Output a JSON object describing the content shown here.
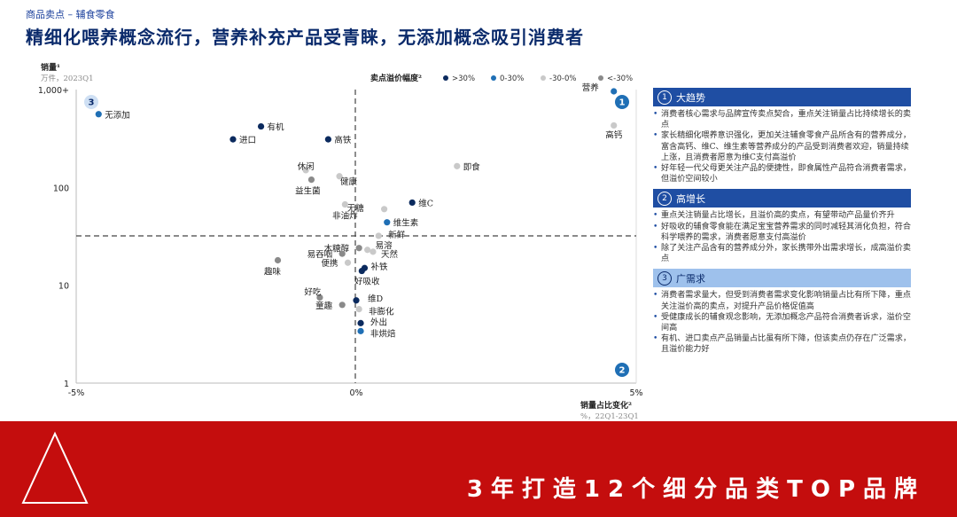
{
  "header": {
    "kicker": "商品卖点 – 辅食零食",
    "title": "精细化喂养概念流行，营养补充产品受青睐，无添加概念吸引消费者"
  },
  "chart_data": {
    "type": "scatter",
    "y_label": "销量¹",
    "y_unit": "万件，2023Q1",
    "x_label": "销量占比变化²",
    "x_unit": "%，22Q1-23Q1",
    "y_scale": "log",
    "y_ticks": [
      "1,000+",
      "100",
      "10",
      "1"
    ],
    "x_ticks": [
      "-5%",
      "0%",
      "5%"
    ],
    "xlim": [
      -5,
      5
    ],
    "ylim": [
      1,
      1000
    ],
    "legend_title": "卖点溢价幅度²",
    "legend": [
      {
        "key": "a",
        "label": ">30%",
        "color": "#0b2a5e"
      },
      {
        "key": "b",
        "label": "0-30%",
        "color": "#1f6fb5"
      },
      {
        "key": "c",
        "label": "-30-0%",
        "color": "#c9c9c9"
      },
      {
        "key": "d",
        "label": "<-30%",
        "color": "#8a8a8a"
      }
    ],
    "points": [
      {
        "label": "营养",
        "x": 4.6,
        "y": 1000,
        "cat": "b"
      },
      {
        "label": "无添加",
        "x": -4.6,
        "y": 560,
        "cat": "b"
      },
      {
        "label": "有机",
        "x": -1.7,
        "y": 420,
        "cat": "a"
      },
      {
        "label": "高钙",
        "x": 4.6,
        "y": 430,
        "cat": "c"
      },
      {
        "label": "进口",
        "x": -2.2,
        "y": 310,
        "cat": "a"
      },
      {
        "label": "高铁",
        "x": -0.5,
        "y": 310,
        "cat": "a"
      },
      {
        "label": "即食",
        "x": 1.8,
        "y": 165,
        "cat": "c"
      },
      {
        "label": "休闲",
        "x": -0.9,
        "y": 150,
        "cat": "c"
      },
      {
        "label": "健康",
        "x": -0.3,
        "y": 130,
        "cat": "c"
      },
      {
        "label": "益生菌",
        "x": -0.8,
        "y": 120,
        "cat": "d"
      },
      {
        "label": "维C",
        "x": 1.0,
        "y": 70,
        "cat": "a"
      },
      {
        "label": "无糖",
        "x": 0.5,
        "y": 60,
        "cat": "c"
      },
      {
        "label": "非油炸",
        "x": -0.2,
        "y": 67,
        "cat": "c"
      },
      {
        "label": "维生素",
        "x": 0.55,
        "y": 44,
        "cat": "b"
      },
      {
        "label": "新鲜",
        "x": 0.4,
        "y": 32,
        "cat": "c"
      },
      {
        "label": "木糖醇",
        "x": 0.05,
        "y": 24,
        "cat": "d"
      },
      {
        "label": "易溶",
        "x": 0.2,
        "y": 23,
        "cat": "c"
      },
      {
        "label": "天然",
        "x": 0.3,
        "y": 22,
        "cat": "c"
      },
      {
        "label": "易吞咽",
        "x": -0.25,
        "y": 21,
        "cat": "d"
      },
      {
        "label": "趣味",
        "x": -1.4,
        "y": 18,
        "cat": "d"
      },
      {
        "label": "便携",
        "x": -0.15,
        "y": 17,
        "cat": "c"
      },
      {
        "label": "补铁",
        "x": 0.15,
        "y": 15,
        "cat": "a"
      },
      {
        "label": "好吸收",
        "x": 0.1,
        "y": 14,
        "cat": "a"
      },
      {
        "label": "好吃",
        "x": -0.65,
        "y": 7.5,
        "cat": "d"
      },
      {
        "label": "维D",
        "x": 0.0,
        "y": 7,
        "cat": "a"
      },
      {
        "label": "童趣",
        "x": -0.25,
        "y": 6.3,
        "cat": "d"
      },
      {
        "label": "非膨化",
        "x": 0.05,
        "y": 5.7,
        "cat": "c"
      },
      {
        "label": "外出",
        "x": 0.08,
        "y": 4.1,
        "cat": "a"
      },
      {
        "label": "非烘焙",
        "x": 0.08,
        "y": 3.4,
        "cat": "b"
      }
    ],
    "quadrant_badges": [
      "3",
      "1",
      "2"
    ]
  },
  "panel": {
    "sections": [
      {
        "num": "1",
        "title": "大趋势",
        "style": "dark",
        "bullets": [
          "消费者核心需求与品牌宣传卖点契合，重点关注销量占比持续增长的卖点",
          "家长精细化喂养意识强化，更加关注辅食零食产品所含有的营养成分，富含高钙、维C、维生素等营养成分的产品受到消费者欢迎，销量持续上涨，且消费者愿意为维C支付高溢价",
          "好年轻一代父母更关注产品的便捷性，即食属性产品符合消费者需求，但溢价空间较小"
        ]
      },
      {
        "num": "2",
        "title": "高增长",
        "style": "dark",
        "bullets": [
          "重点关注销量占比增长，且溢价高的卖点，有望带动产品量价齐升",
          "好吸收的辅食零食能在满足宝宝营养需求的同时减轻其消化负担，符合科学喂养的需求，消费者愿意支付高溢价",
          "除了关注产品含有的营养成分外，家长携带外出需求增长，成高溢价卖点"
        ]
      },
      {
        "num": "3",
        "title": "广需求",
        "style": "light",
        "bullets": [
          "消费者需求量大，但受到消费者需求变化影响销量占比有所下降，重点关注溢价高的卖点，对提升产品价格促值高",
          "受健康成长的辅食观念影响，无添加概念产品符合消费者诉求，溢价空间高",
          "有机、进口卖点产品销量占比虽有所下降，但该卖点仍存在广泛需求，且溢价能力好"
        ]
      }
    ]
  },
  "banner": {
    "text": "3年打造12个细分品类TOP品牌",
    "bg_color": "#c40d0d"
  }
}
